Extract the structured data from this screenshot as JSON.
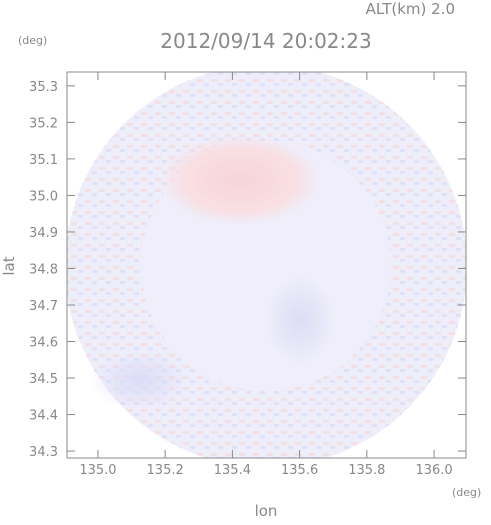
{
  "chart_data": {
    "type": "radar-field",
    "title": "2012/09/14 20:02:23",
    "altitude_label": "ALT(km) 2.0",
    "x_label": "lon",
    "y_label": "lat",
    "x_unit": "(deg)",
    "y_unit": "(deg)",
    "xlim": [
      134.908,
      136.095
    ],
    "ylim": [
      34.281,
      35.338
    ],
    "xticks": [
      {
        "value": 135.0,
        "label": "135.0"
      },
      135.2,
      135.4,
      135.6,
      135.8,
      {
        "value": 136.0,
        "label": "136.0"
      }
    ],
    "yticks": [
      34.3,
      34.4,
      34.5,
      34.6,
      34.7,
      34.8,
      34.9,
      {
        "value": 35.0,
        "label": "35.0"
      },
      35.1,
      35.2,
      35.3
    ]
  }
}
